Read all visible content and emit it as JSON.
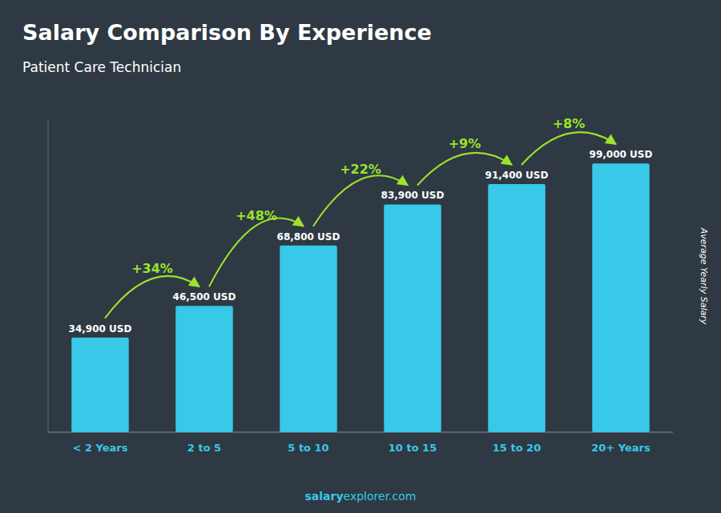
{
  "chart_data": {
    "type": "bar",
    "title": "Salary Comparison By Experience",
    "subtitle": "Patient Care Technician",
    "y_label": "Average Yearly Salary",
    "categories": [
      "< 2 Years",
      "2 to 5",
      "5 to 10",
      "10 to 15",
      "15 to 20",
      "20+ Years"
    ],
    "values": [
      34900,
      46500,
      68800,
      83900,
      91400,
      99000
    ],
    "value_labels": [
      "34,900 USD",
      "46,500 USD",
      "68,800 USD",
      "83,900 USD",
      "91,400 USD",
      "99,000 USD"
    ],
    "data_labels": true,
    "color": "#38c8e8",
    "ylim": [
      0,
      115000
    ],
    "tick_labels": "x",
    "grid": false,
    "annotations": [
      "+34%",
      "+48%",
      "+22%",
      "+9%",
      "+8%",
      "salary",
      "explorer.com"
    ]
  }
}
